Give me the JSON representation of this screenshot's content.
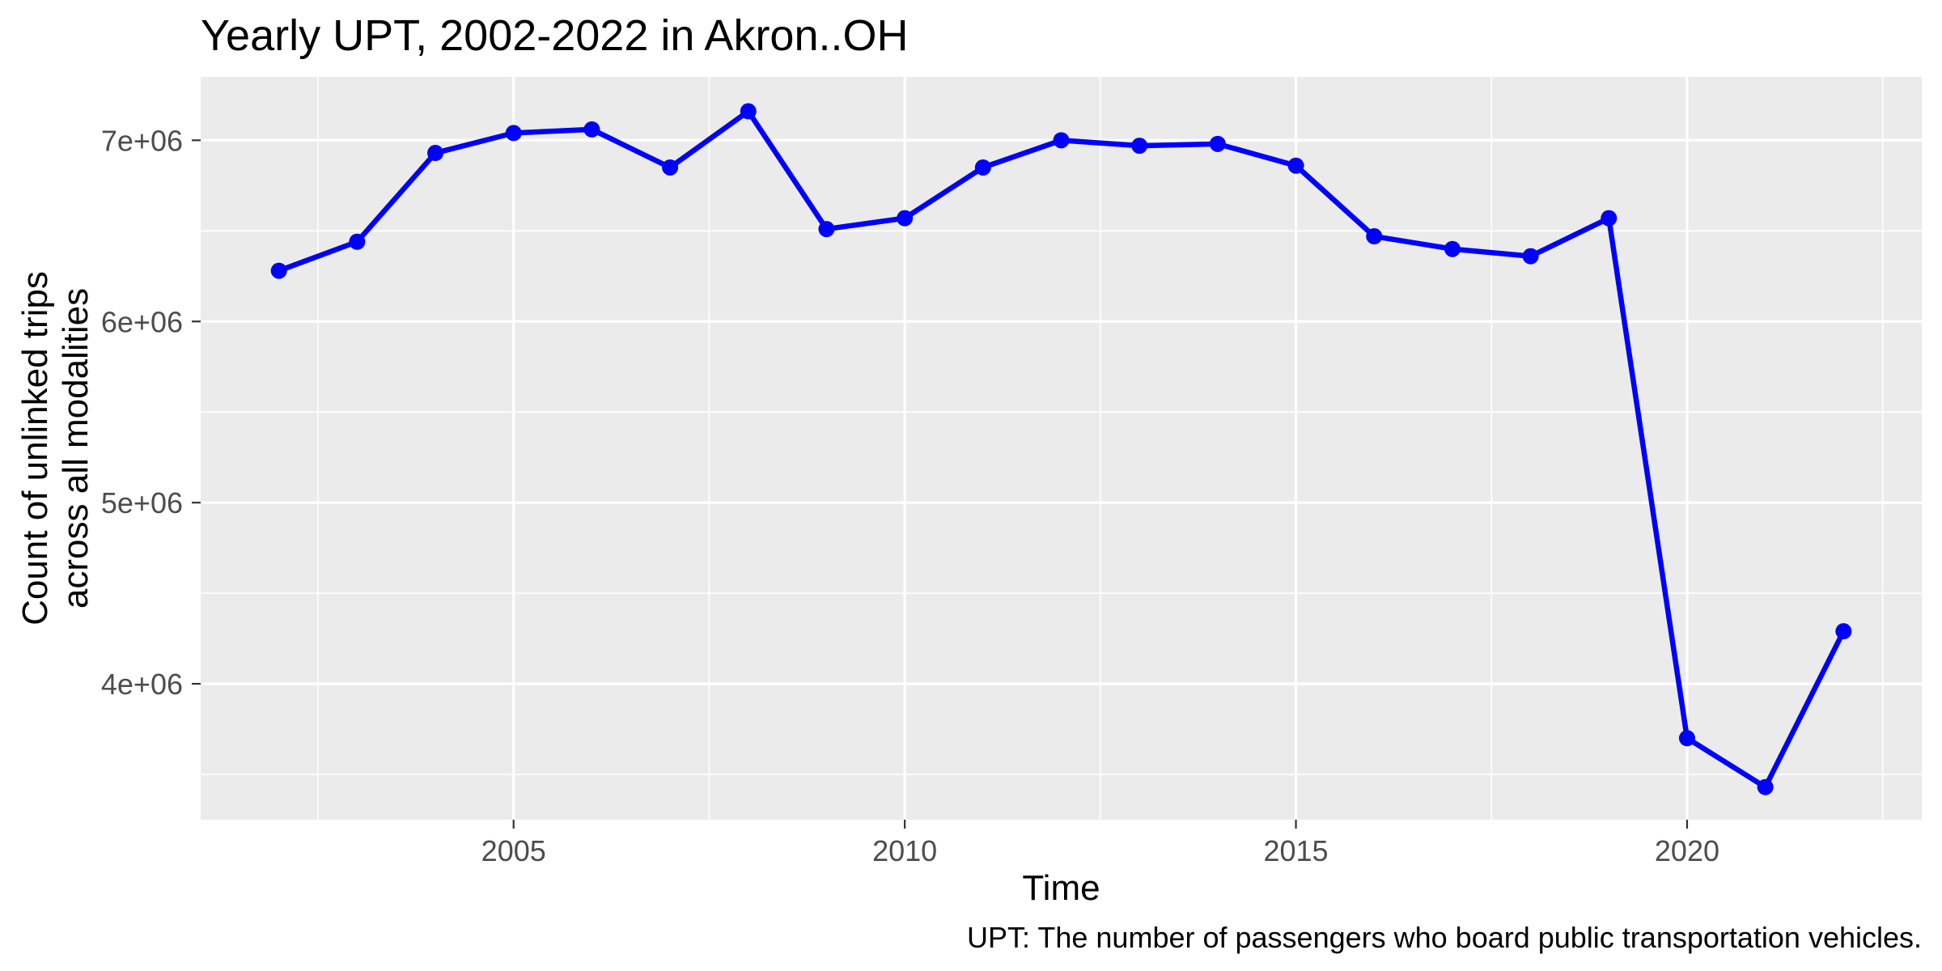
{
  "chart_data": {
    "type": "line",
    "title": "Yearly UPT, 2002-2022 in Akron..OH",
    "xlabel": "Time",
    "ylabel": [
      "Count of unlinked trips",
      "across all modalities"
    ],
    "caption": "UPT: The number of passengers who board public transportation vehicles.",
    "x": [
      2002,
      2003,
      2004,
      2005,
      2006,
      2007,
      2008,
      2009,
      2010,
      2011,
      2012,
      2013,
      2014,
      2015,
      2016,
      2017,
      2018,
      2019,
      2020,
      2021,
      2022
    ],
    "series": [
      {
        "color": "#0000FF",
        "values": [
          6280000,
          6440000,
          6930000,
          7040000,
          7060000,
          6850000,
          7160000,
          6510000,
          6570000,
          6850000,
          7000000,
          6970000,
          6980000,
          6860000,
          6470000,
          6400000,
          6360000,
          6570000,
          3700000,
          3430000,
          4290000
        ]
      }
    ],
    "xlim": [
      2001,
      2023
    ],
    "ylim": [
      3250000,
      7350000
    ],
    "x_ticks": [
      2005,
      2010,
      2015,
      2020
    ],
    "x_tick_labels": [
      "2005",
      "2010",
      "2015",
      "2020"
    ],
    "y_ticks": [
      4000000,
      5000000,
      6000000,
      7000000
    ],
    "y_tick_labels": [
      "4e+06",
      "5e+06",
      "6e+06",
      "7e+06"
    ],
    "grid": true,
    "legend": "none",
    "colors": {
      "panel": "#EBEBEB",
      "gridline": "#FFFFFF",
      "tick_mark": "#333333",
      "tick_label": "#4D4D4D"
    }
  }
}
